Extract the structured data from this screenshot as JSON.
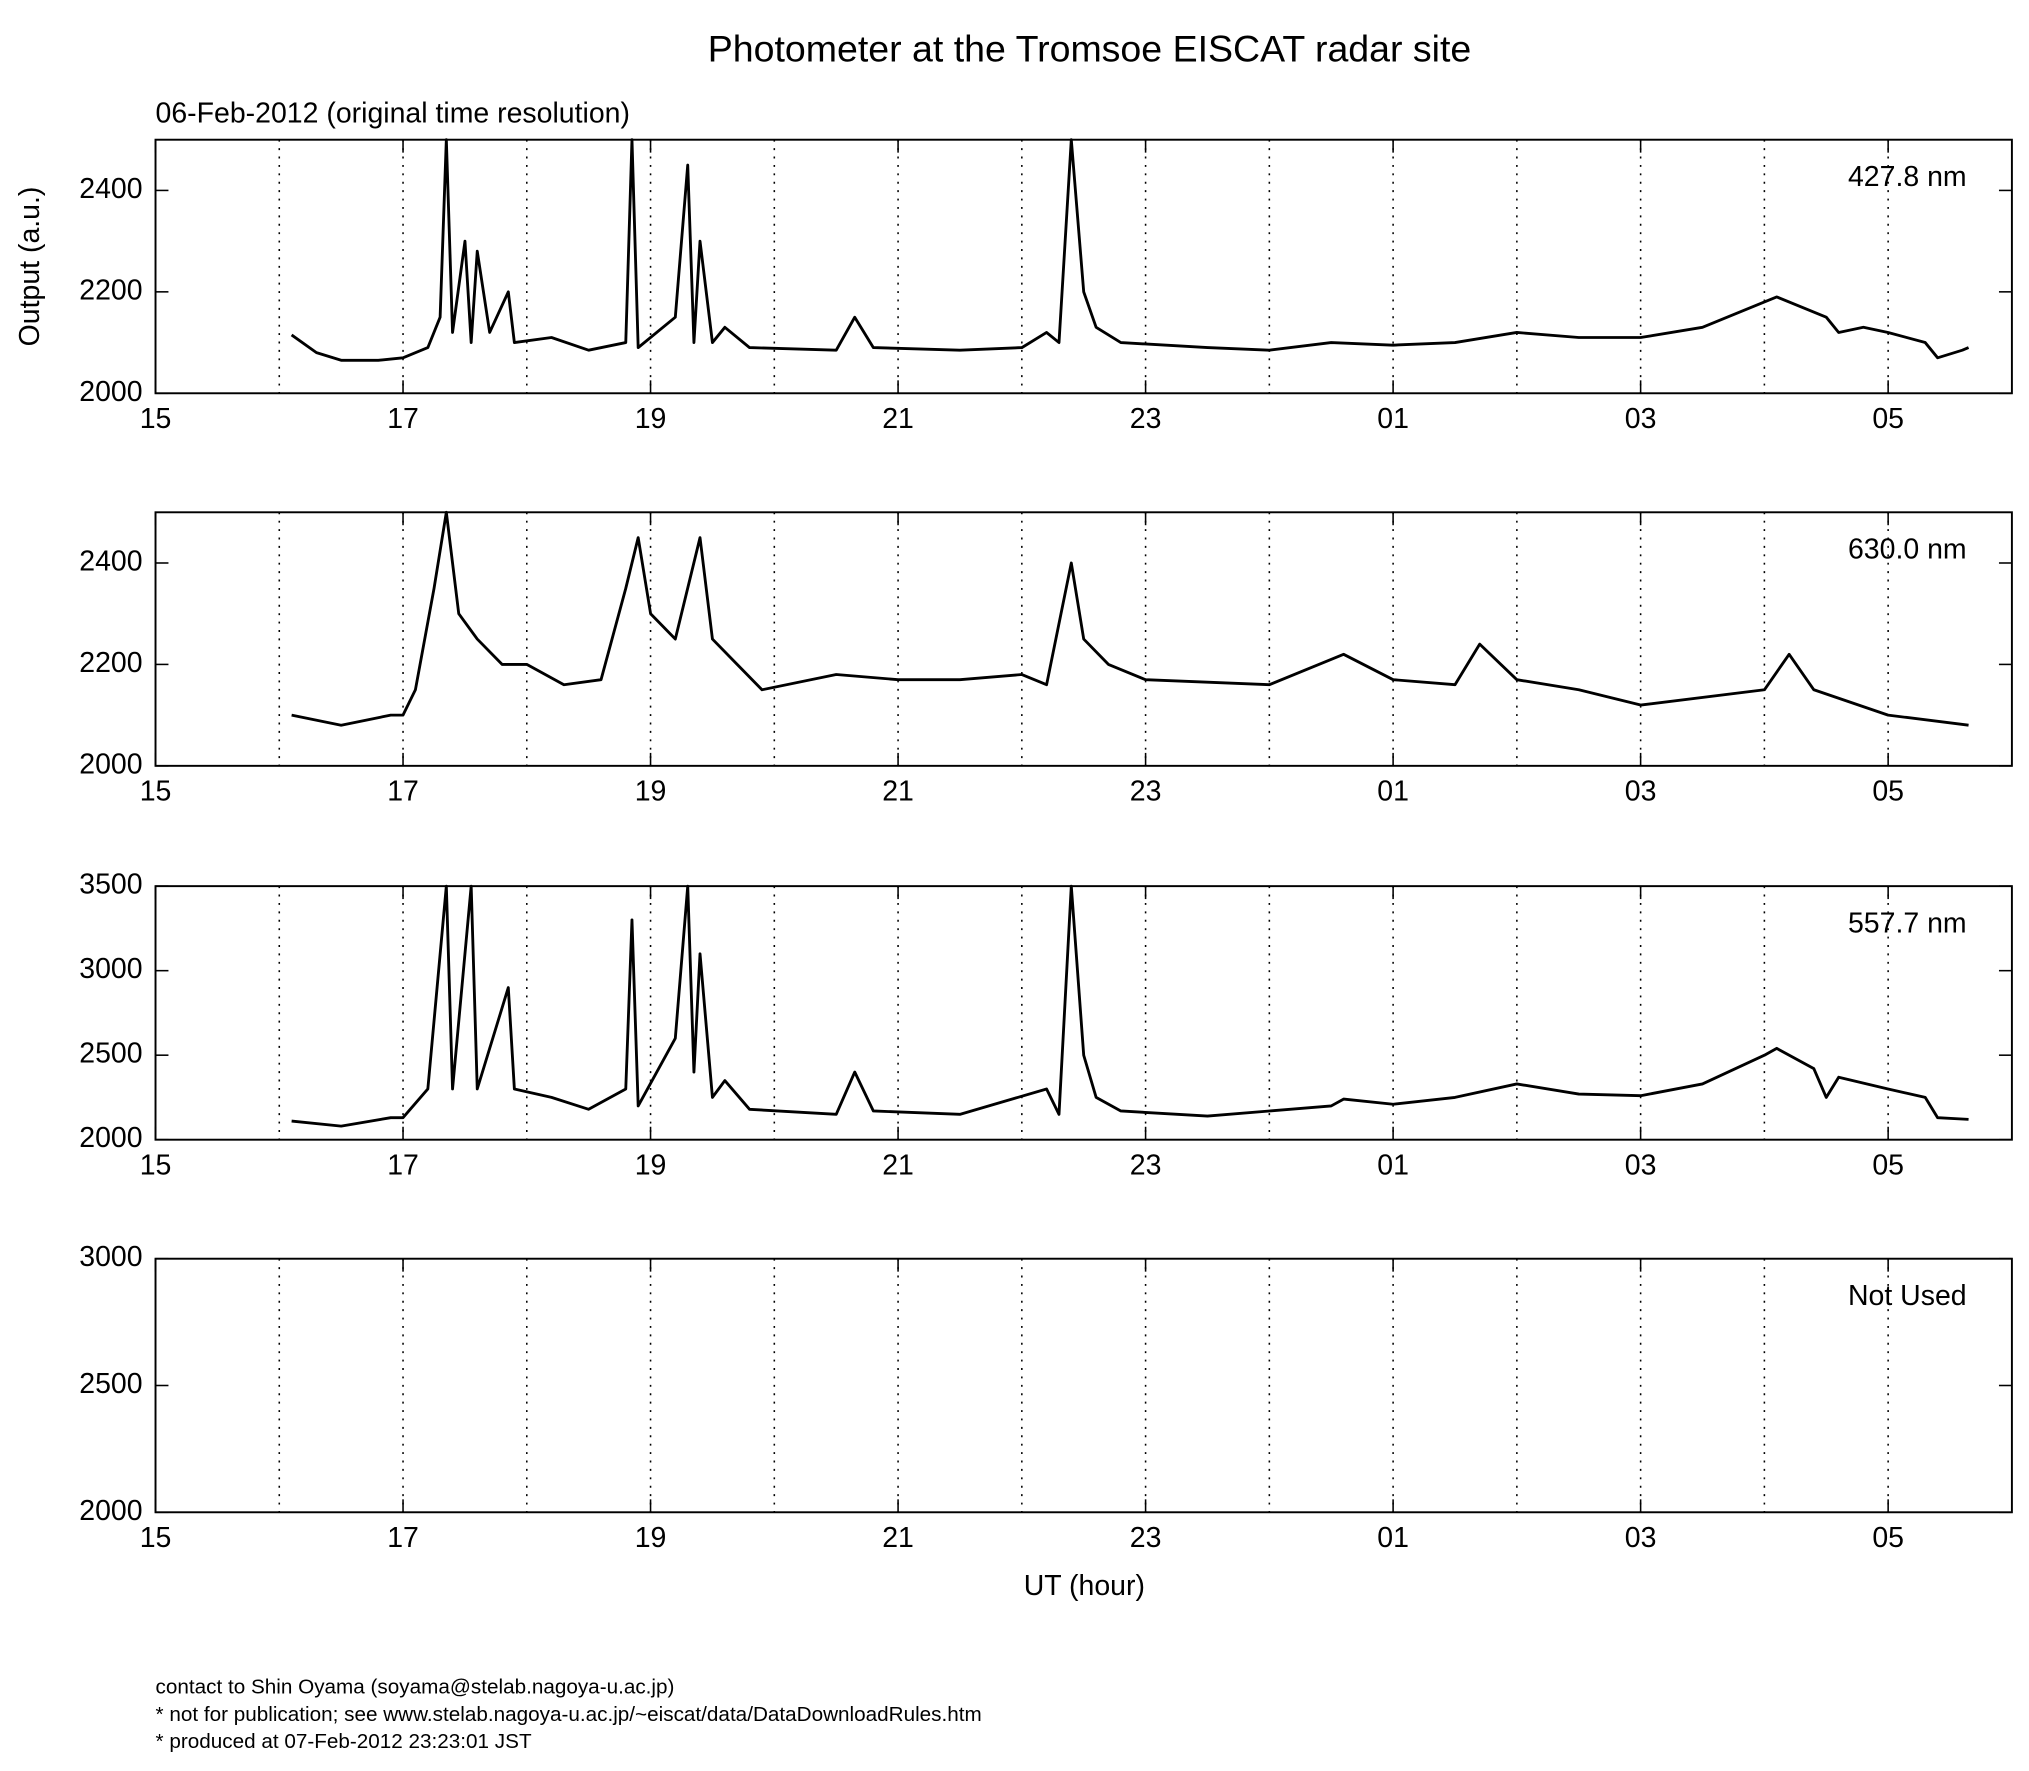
{
  "chart_data": [
    {
      "type": "line",
      "title": "Photometer at the Tromsoe EISCAT radar site",
      "subtitle": "06-Feb-2012 (original time resolution)",
      "ylabel": "Output (a.u.)",
      "annotation": "427.8 nm",
      "color": "#000000",
      "xlim": [
        15,
        30
      ],
      "xticks": [
        15,
        17,
        19,
        21,
        23,
        {
          "value": 25,
          "label": "01"
        },
        {
          "value": 27,
          "label": "03"
        },
        {
          "value": 29,
          "label": "05"
        }
      ],
      "xgrid": [
        16,
        17,
        18,
        19,
        20,
        21,
        22,
        23,
        24,
        25,
        26,
        27,
        28,
        29
      ],
      "ylim": [
        2000,
        2500
      ],
      "yticks": [
        2000,
        2200,
        2400
      ],
      "x": [
        16.1,
        16.3,
        16.5,
        16.8,
        17.0,
        17.2,
        17.3,
        17.35,
        17.4,
        17.5,
        17.55,
        17.6,
        17.7,
        17.85,
        17.9,
        18.2,
        18.5,
        18.8,
        18.85,
        18.9,
        19.2,
        19.3,
        19.35,
        19.4,
        19.5,
        19.6,
        19.8,
        20.5,
        20.65,
        20.8,
        21.5,
        22.0,
        22.2,
        22.3,
        22.4,
        22.5,
        22.6,
        22.8,
        23.5,
        24.0,
        24.5,
        25.0,
        25.5,
        26.0,
        26.5,
        27.0,
        27.5,
        28.0,
        28.1,
        28.5,
        28.6,
        28.8,
        29.0,
        29.3,
        29.4,
        29.6,
        29.65
      ],
      "values": [
        2115,
        2080,
        2065,
        2065,
        2070,
        2090,
        2150,
        2500,
        2120,
        2300,
        2100,
        2280,
        2120,
        2200,
        2100,
        2110,
        2085,
        2100,
        2500,
        2090,
        2150,
        2450,
        2100,
        2300,
        2100,
        2130,
        2090,
        2085,
        2150,
        2090,
        2085,
        2090,
        2120,
        2100,
        2500,
        2200,
        2130,
        2100,
        2090,
        2085,
        2100,
        2095,
        2100,
        2120,
        2110,
        2110,
        2130,
        2180,
        2190,
        2150,
        2120,
        2130,
        2120,
        2100,
        2070,
        2085,
        2090
      ]
    },
    {
      "type": "line",
      "annotation": "630.0 nm",
      "color": "#000000",
      "xlim": [
        15,
        30
      ],
      "xticks": [
        15,
        17,
        19,
        21,
        23,
        {
          "value": 25,
          "label": "01"
        },
        {
          "value": 27,
          "label": "03"
        },
        {
          "value": 29,
          "label": "05"
        }
      ],
      "xgrid": [
        16,
        17,
        18,
        19,
        20,
        21,
        22,
        23,
        24,
        25,
        26,
        27,
        28,
        29
      ],
      "ylim": [
        2000,
        2500
      ],
      "yticks": [
        2000,
        2200,
        2400
      ],
      "x": [
        16.1,
        16.5,
        16.9,
        17.0,
        17.1,
        17.25,
        17.35,
        17.45,
        17.6,
        17.8,
        18.0,
        18.3,
        18.6,
        18.8,
        18.9,
        19.0,
        19.2,
        19.4,
        19.5,
        19.7,
        19.9,
        20.5,
        21.0,
        21.5,
        22.0,
        22.2,
        22.4,
        22.5,
        22.7,
        23.0,
        24.0,
        24.6,
        25.0,
        25.5,
        25.7,
        26.0,
        26.5,
        27.0,
        28.0,
        28.2,
        28.4,
        29.0,
        29.65
      ],
      "values": [
        2100,
        2080,
        2100,
        2100,
        2150,
        2350,
        2500,
        2300,
        2250,
        2200,
        2200,
        2160,
        2170,
        2350,
        2450,
        2300,
        2250,
        2450,
        2250,
        2200,
        2150,
        2180,
        2170,
        2170,
        2180,
        2160,
        2400,
        2250,
        2200,
        2170,
        2160,
        2220,
        2170,
        2160,
        2240,
        2170,
        2150,
        2120,
        2150,
        2220,
        2150,
        2100,
        2080
      ]
    },
    {
      "type": "line",
      "annotation": "557.7 nm",
      "color": "#000000",
      "xlim": [
        15,
        30
      ],
      "xticks": [
        15,
        17,
        19,
        21,
        23,
        {
          "value": 25,
          "label": "01"
        },
        {
          "value": 27,
          "label": "03"
        },
        {
          "value": 29,
          "label": "05"
        }
      ],
      "xgrid": [
        16,
        17,
        18,
        19,
        20,
        21,
        22,
        23,
        24,
        25,
        26,
        27,
        28,
        29
      ],
      "ylim": [
        2000,
        3500
      ],
      "yticks": [
        2000,
        2500,
        3000,
        3500
      ],
      "x": [
        16.1,
        16.5,
        16.9,
        17.0,
        17.2,
        17.35,
        17.4,
        17.55,
        17.6,
        17.85,
        17.9,
        18.2,
        18.5,
        18.8,
        18.85,
        18.9,
        19.2,
        19.3,
        19.35,
        19.4,
        19.5,
        19.6,
        19.8,
        20.5,
        20.65,
        20.8,
        21.5,
        22.2,
        22.3,
        22.4,
        22.5,
        22.6,
        22.8,
        23.5,
        24.0,
        24.5,
        24.6,
        25.0,
        25.5,
        26.0,
        26.5,
        27.0,
        27.5,
        28.0,
        28.1,
        28.4,
        28.5,
        28.6,
        29.0,
        29.3,
        29.4,
        29.65
      ],
      "values": [
        2110,
        2080,
        2130,
        2130,
        2300,
        3500,
        2300,
        3500,
        2300,
        2900,
        2300,
        2250,
        2180,
        2300,
        3300,
        2200,
        2600,
        3500,
        2400,
        3100,
        2250,
        2350,
        2180,
        2150,
        2400,
        2170,
        2150,
        2300,
        2150,
        3500,
        2500,
        2250,
        2170,
        2140,
        2170,
        2200,
        2240,
        2210,
        2250,
        2330,
        2270,
        2260,
        2330,
        2500,
        2540,
        2420,
        2250,
        2370,
        2300,
        2250,
        2130,
        2120
      ]
    },
    {
      "type": "line",
      "annotation": "Not Used",
      "xlabel": "UT (hour)",
      "xlim": [
        15,
        30
      ],
      "xticks": [
        15,
        17,
        19,
        21,
        23,
        {
          "value": 25,
          "label": "01"
        },
        {
          "value": 27,
          "label": "03"
        },
        {
          "value": 29,
          "label": "05"
        }
      ],
      "xgrid": [
        16,
        17,
        18,
        19,
        20,
        21,
        22,
        23,
        24,
        25,
        26,
        27,
        28,
        29
      ],
      "ylim": [
        2000,
        3000
      ],
      "yticks": [
        2000,
        2500,
        3000
      ]
    }
  ],
  "footer": [
    "contact to Shin Oyama (soyama@stelab.nagoya-u.ac.jp)",
    "* not for publication; see www.stelab.nagoya-u.ac.jp/~eiscat/data/DataDownloadRules.htm",
    "* produced at 07-Feb-2012 23:23:01 JST"
  ]
}
